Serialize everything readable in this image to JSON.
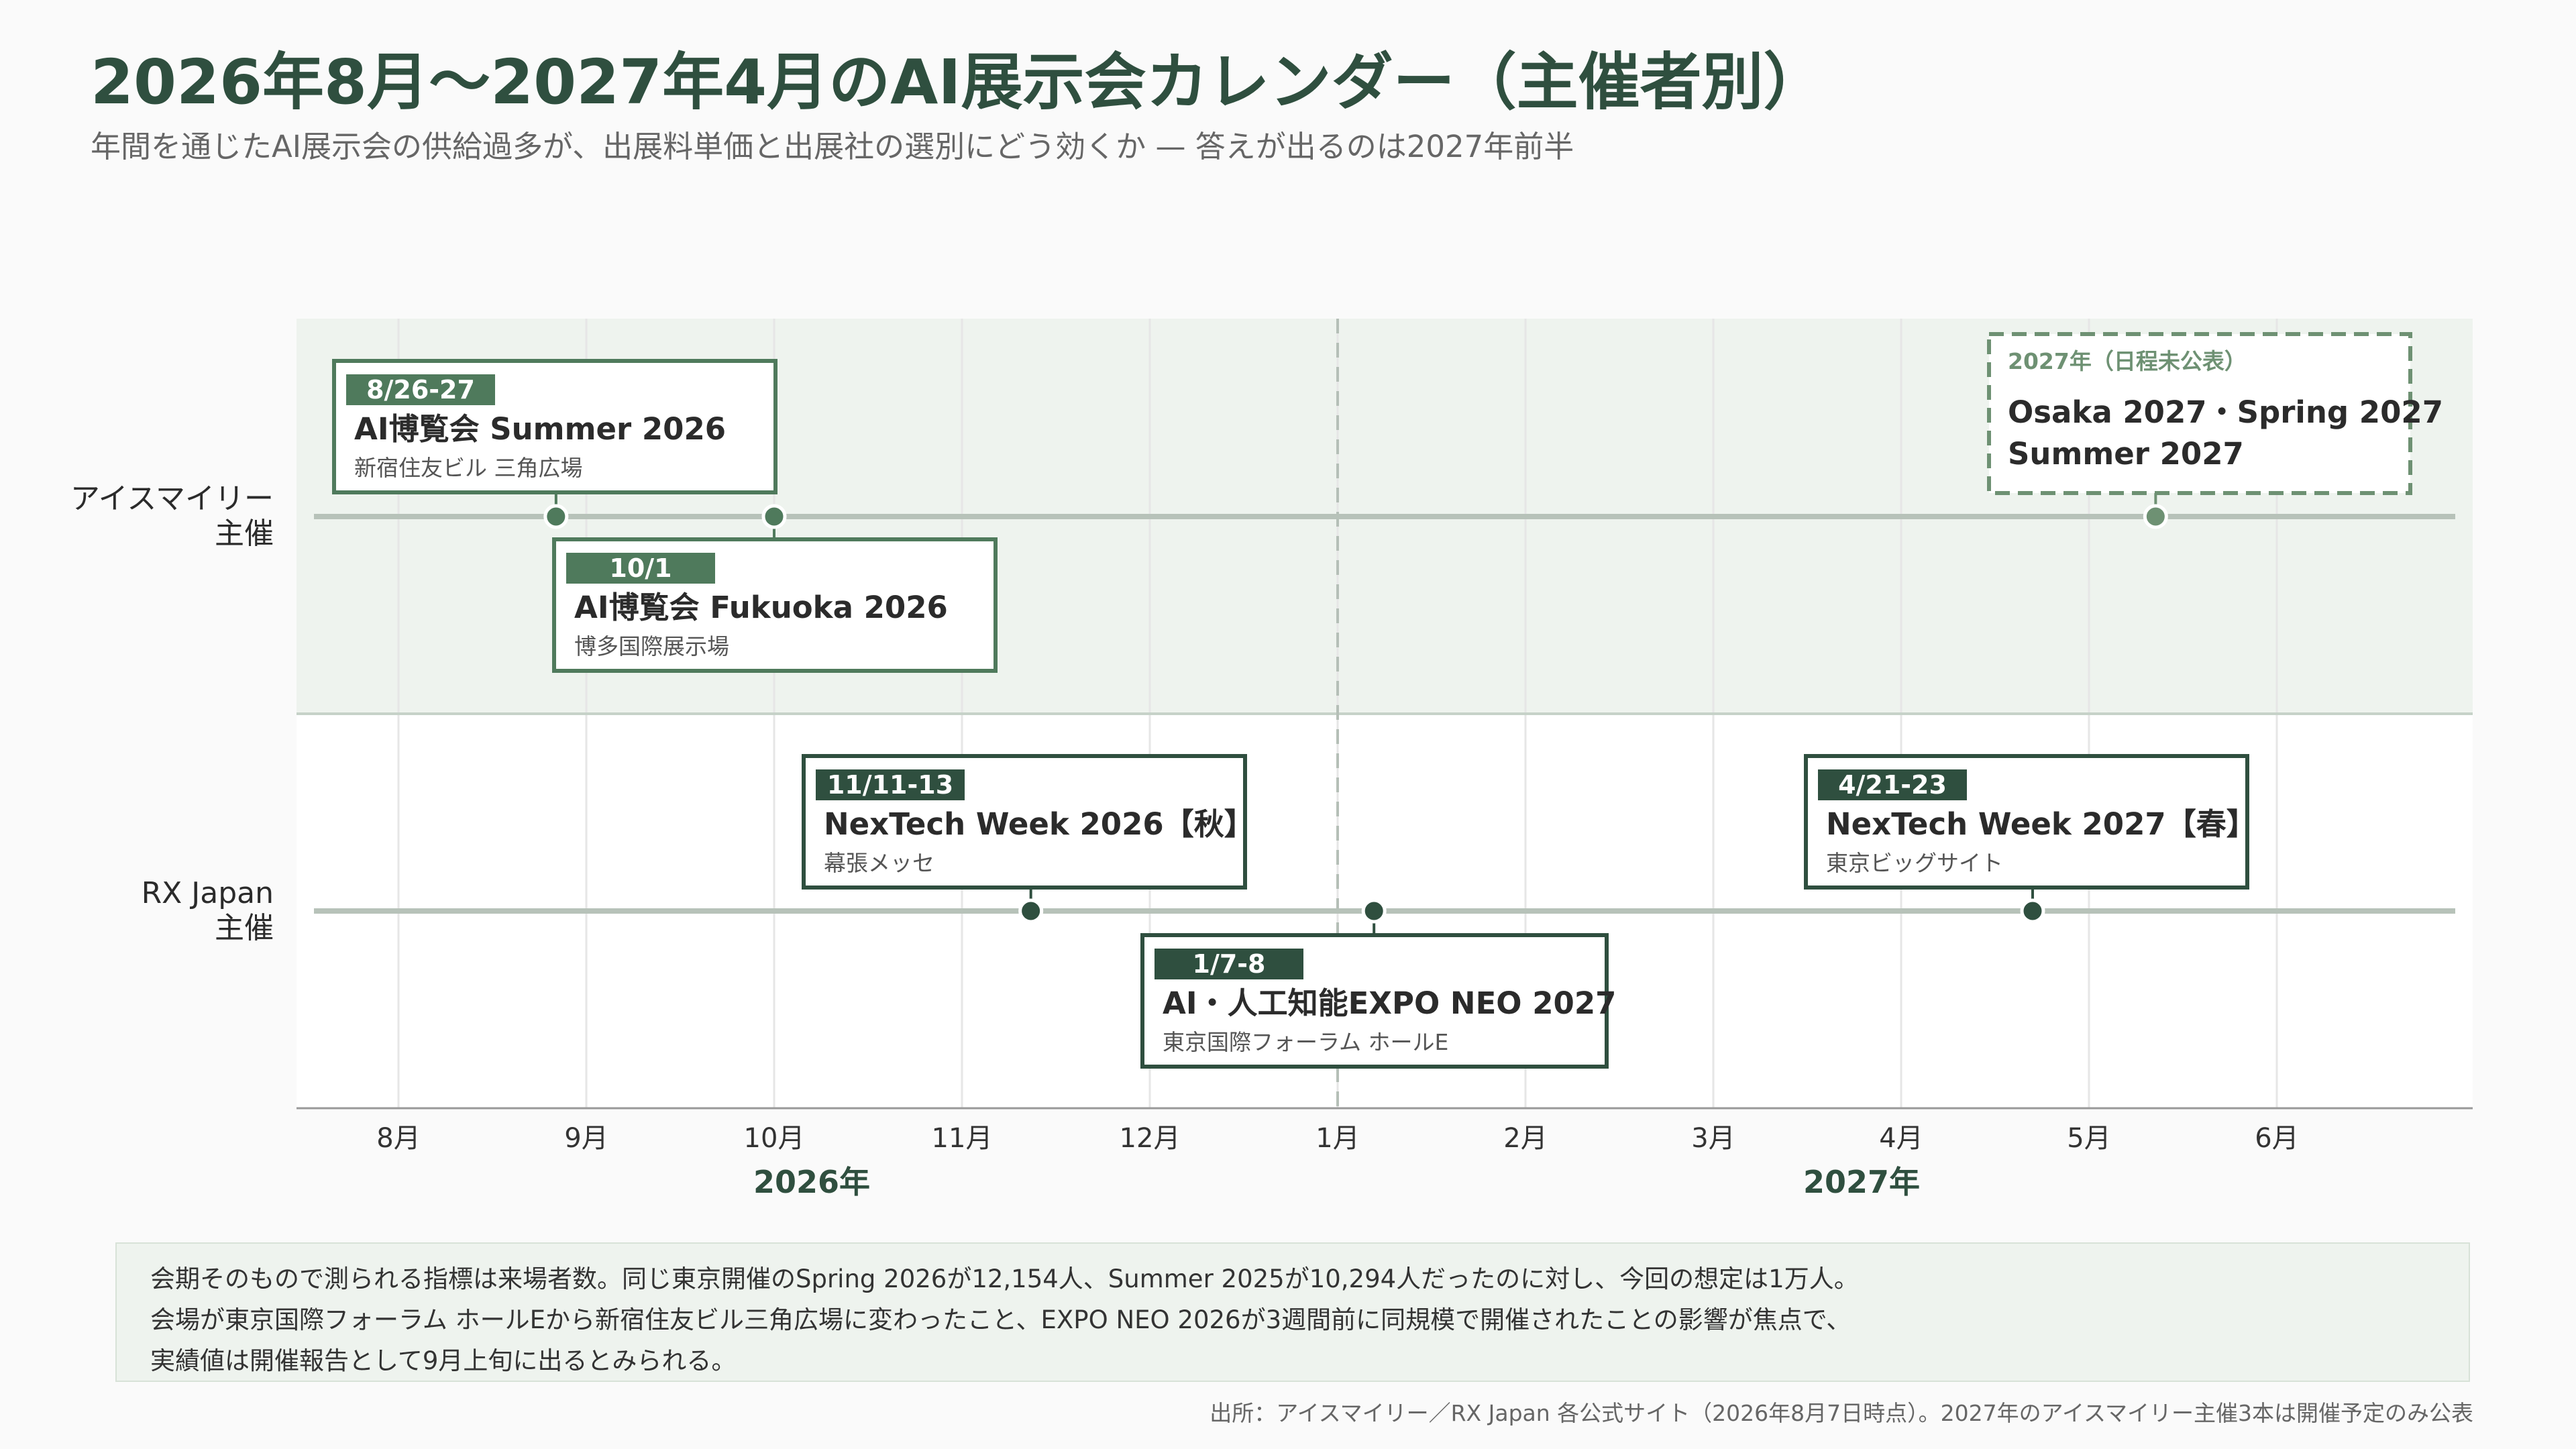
{
  "title": "2026年8月〜2027年4月のAI展示会カレンダー（主催者別）",
  "subtitle": "年間を通じたAI展示会の供給過多が、出展料単価と出展社の選別にどう効くか — 答えが出るのは2027年前半",
  "chart_data": {
    "type": "timeline",
    "x_ticks": [
      "8月",
      "9月",
      "10月",
      "11月",
      "12月",
      "1月",
      "2月",
      "3月",
      "4月",
      "5月",
      "6月"
    ],
    "year_labels": [
      "2026年",
      "2027年"
    ],
    "year_divider": "1月",
    "lanes": [
      {
        "name": "アイスマイリー\n主催",
        "shaded": true
      },
      {
        "name": "RX Japan\n主催",
        "shaded": false
      }
    ],
    "events": [
      {
        "lane": 0,
        "date": "2026-08-27",
        "range": "8/26-27",
        "name": "AI博覧会 Summer 2026",
        "venue": "新宿住友ビル 三角広場",
        "position": "above"
      },
      {
        "lane": 0,
        "date": "2026-10-01",
        "range": "10/1",
        "name": "AI博覧会 Fukuoka 2026",
        "venue": "博多国際展示場",
        "position": "below"
      },
      {
        "lane": 1,
        "date": "2026-11-12",
        "range": "11/11-13",
        "name": "NexTech Week 2026【秋】",
        "venue": "幕張メッセ",
        "position": "above"
      },
      {
        "lane": 1,
        "date": "2027-01-07",
        "range": "1/7-8",
        "name": "AI・人工知能EXPO NEO 2027",
        "venue": "東京国際フォーラム ホールE",
        "position": "below"
      },
      {
        "lane": 1,
        "date": "2027-04-22",
        "range": "4/21-23",
        "name": "NexTech Week 2027【春】",
        "venue": "東京ビッグサイト",
        "position": "above"
      }
    ],
    "tentative": {
      "lane": 0,
      "date": "2027-05-12",
      "label": "2027年（日程未公表）",
      "lines": [
        "Osaka 2027・Spring 2027",
        "Summer 2027"
      ]
    }
  },
  "note_lines": [
    "会期そのもので測られる指標は来場者数。同じ東京開催のSpring 2026が12,154人、Summer 2025が10,294人だったのに対し、今回の想定は1万人。",
    "会場が東京国際フォーラム ホールEから新宿住友ビル三角広場に変わったこと、EXPO NEO 2026が3週間前に同規模で開催されたことの影響が焦点で、",
    "実績値は開催報告として9月上旬に出るとみられる。"
  ],
  "source": "出所：アイスマイリー／RX Japan 各公式サイト（2026年8月7日時点）。2027年のアイスマイリー主催3本は開催予定のみ公表",
  "colors": {
    "dark_green": "#2f4f3f",
    "mid_green": "#4f7a5c",
    "soft_green": "#6e9173",
    "lane_shade": "#eef3ee",
    "axis_line": "#b7c2b9",
    "grid": "#e6e6e6"
  }
}
